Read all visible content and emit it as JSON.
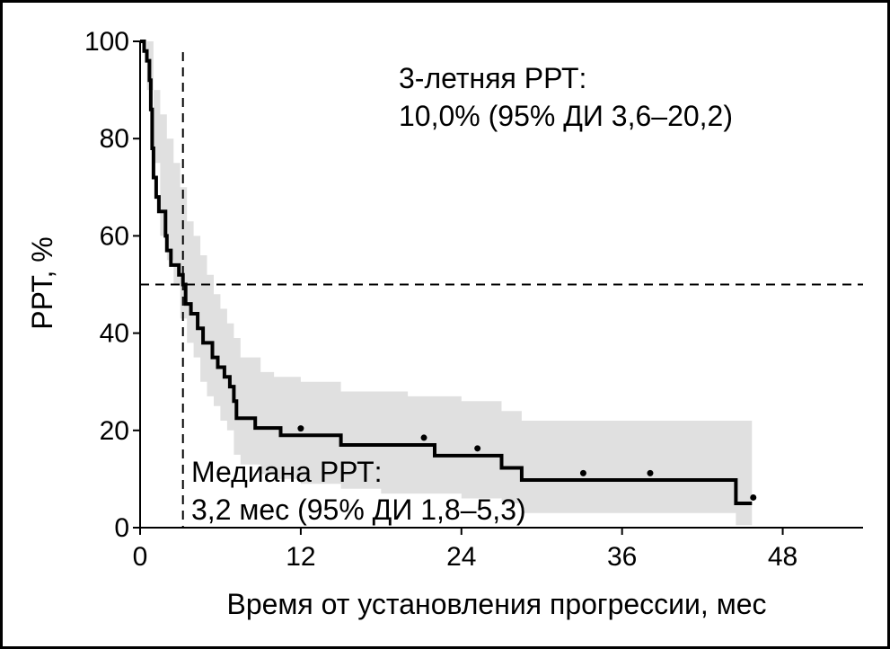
{
  "chart_data": {
    "type": "line",
    "subtype": "kaplan-meier",
    "title": "",
    "xlabel": "Время от установления прогрессии, мес",
    "ylabel": "РРТ, %",
    "xlim": [
      0,
      54
    ],
    "ylim": [
      0,
      100
    ],
    "xticks": [
      0,
      12,
      24,
      36,
      48
    ],
    "yticks": [
      0,
      20,
      40,
      60,
      80,
      100
    ],
    "grid": false,
    "series": [
      {
        "kind": "survival-step",
        "color": "#000000",
        "steps": [
          [
            0,
            100
          ],
          [
            0.3,
            98
          ],
          [
            0.5,
            96
          ],
          [
            0.7,
            92
          ],
          [
            0.8,
            86
          ],
          [
            0.9,
            78
          ],
          [
            1.0,
            72
          ],
          [
            1.2,
            68
          ],
          [
            1.4,
            65
          ],
          [
            1.9,
            60
          ],
          [
            2.0,
            57
          ],
          [
            2.3,
            54
          ],
          [
            2.9,
            52
          ],
          [
            3.2,
            50
          ],
          [
            3.4,
            46
          ],
          [
            3.8,
            44
          ],
          [
            4.3,
            41
          ],
          [
            4.7,
            38
          ],
          [
            5.4,
            35
          ],
          [
            5.8,
            33
          ],
          [
            6.3,
            31
          ],
          [
            6.7,
            29
          ],
          [
            7.0,
            26
          ],
          [
            7.2,
            22.5
          ],
          [
            8.6,
            20.5
          ],
          [
            10.5,
            19
          ],
          [
            15.0,
            17
          ],
          [
            22.0,
            14.8
          ],
          [
            27.0,
            12.3
          ],
          [
            28.5,
            9.8
          ],
          [
            44.5,
            5.0
          ],
          [
            45.7,
            5.0
          ]
        ],
        "censor_points": [
          [
            12.0,
            20.4
          ],
          [
            21.2,
            18.5
          ],
          [
            25.2,
            16.3
          ],
          [
            33.1,
            11.2
          ],
          [
            38.1,
            11.2
          ],
          [
            45.8,
            6.2
          ]
        ]
      }
    ],
    "ci_band": {
      "color": "#e0e0e0",
      "steps": [
        [
          0,
          100,
          100
        ],
        [
          0.5,
          100,
          90
        ],
        [
          1.0,
          90,
          75
        ],
        [
          1.5,
          85,
          60
        ],
        [
          2.0,
          80,
          55
        ],
        [
          2.5,
          75,
          50
        ],
        [
          3.0,
          70,
          43
        ],
        [
          3.5,
          63,
          38
        ],
        [
          4.0,
          60,
          35
        ],
        [
          4.5,
          56,
          30
        ],
        [
          5.0,
          52,
          27
        ],
        [
          5.5,
          48,
          25
        ],
        [
          6.0,
          45,
          22
        ],
        [
          6.5,
          42,
          20
        ],
        [
          7.0,
          39,
          15
        ],
        [
          7.5,
          35,
          13
        ],
        [
          9.0,
          32,
          11
        ],
        [
          10.0,
          31,
          10
        ],
        [
          12.0,
          30,
          9
        ],
        [
          15.0,
          28,
          8
        ],
        [
          18.0,
          28,
          7
        ],
        [
          20.0,
          27,
          7
        ],
        [
          24.0,
          26,
          6
        ],
        [
          27.0,
          24,
          5
        ],
        [
          28.5,
          22,
          3
        ],
        [
          44.5,
          22,
          0.5
        ],
        [
          45.7,
          22,
          0.5
        ]
      ]
    },
    "reference_lines": {
      "horizontal_y": 50,
      "vertical_x": 3.2
    },
    "annotations": {
      "three_year_line1": "3-летняя РРТ:",
      "three_year_line2": "10,0% (95% ДИ 3,6–20,2)",
      "median_line1": "Медиана РРТ:",
      "median_line2": "3,2 мес (95% ДИ 1,8–5,3)"
    }
  }
}
